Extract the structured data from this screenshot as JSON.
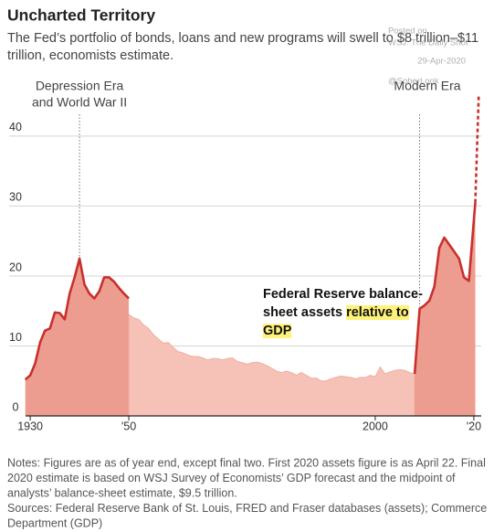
{
  "chart_data": {
    "type": "area",
    "title": "Uncharted Territory",
    "subtitle": [
      "The Fed’s portfolio of bonds, loans and new programs will swell to $8 trillion–$11",
      "trillion, economists estimate."
    ],
    "watermark": [
      "Posted on",
      "WSJ: The Daily Shot",
      "29-Apr-2020",
      "@SoberLook"
    ],
    "annotations": [
      {
        "lines": [
          "Depression Era",
          "and World War II"
        ],
        "x": 1940
      },
      {
        "lines": [
          "Modern Era"
        ],
        "x": 2009
      }
    ],
    "series_label": [
      [
        {
          "text": "Federal Reserve balance-"
        }
      ],
      [
        {
          "text": "sheet assets "
        },
        {
          "text": "relative to",
          "highlight": true
        }
      ],
      [
        {
          "text": "GDP",
          "highlight": true
        }
      ]
    ],
    "xlim": [
      1928.5,
      2021.5
    ],
    "ylim": [
      0,
      46
    ],
    "xticks": [
      1930,
      {
        "value": 1950,
        "label": "'50"
      },
      2000,
      {
        "value": 2020,
        "label": "'20"
      }
    ],
    "yticks": [
      0,
      10,
      20,
      30,
      40
    ],
    "grid": true,
    "series": [
      {
        "color": "#c8302c",
        "fill": "#ec9d8f",
        "x": [
          1929,
          1930,
          1931,
          1932,
          1933,
          1934,
          1935,
          1936,
          1937,
          1938,
          1939,
          1940,
          1941,
          1942,
          1943,
          1944,
          1945,
          1946,
          1947,
          1948,
          1949,
          1950
        ],
        "values": [
          5.2,
          5.8,
          7.5,
          10.5,
          12.2,
          12.5,
          14.8,
          14.7,
          13.8,
          17.5,
          19.8,
          22.5,
          18.8,
          17.5,
          16.8,
          17.8,
          19.8,
          19.8,
          19.2,
          18.3,
          17.5,
          16.8
        ]
      },
      {
        "color": null,
        "fill": "#f6c2b7",
        "x": [
          1950,
          1951,
          1952,
          1953,
          1954,
          1955,
          1956,
          1957,
          1958,
          1959,
          1960,
          1961,
          1962,
          1963,
          1964,
          1965,
          1966,
          1967,
          1968,
          1969,
          1970,
          1971,
          1972,
          1973,
          1974,
          1975,
          1976,
          1977,
          1978,
          1979,
          1980,
          1981,
          1982,
          1983,
          1984,
          1985,
          1986,
          1987,
          1988,
          1989,
          1990,
          1991,
          1992,
          1993,
          1994,
          1995,
          1996,
          1997,
          1998,
          1999,
          2000,
          2001,
          2002,
          2003,
          2004,
          2005,
          2006,
          2007,
          2008
        ],
        "values": [
          14.5,
          14,
          13.8,
          13,
          12.5,
          11.6,
          11,
          10.4,
          10.5,
          9.8,
          9.2,
          9,
          8.7,
          8.5,
          8.5,
          8.3,
          8,
          8.2,
          8.2,
          8,
          8.2,
          8.3,
          7.8,
          7.6,
          7.4,
          7.6,
          7.7,
          7.5,
          7.2,
          6.8,
          6.4,
          6.2,
          6.4,
          6.2,
          5.8,
          6.2,
          5.8,
          5.4,
          5.4,
          5,
          5,
          5.3,
          5.5,
          5.7,
          5.6,
          5.5,
          5.3,
          5.5,
          5.5,
          5.8,
          5.6,
          7,
          6,
          6.3,
          6.5,
          6.6,
          6.5,
          6.2,
          6
        ]
      },
      {
        "color": "#c8302c",
        "fill": "#ec9d8f",
        "x": [
          2008,
          2009,
          2010,
          2011,
          2012,
          2013,
          2014,
          2015,
          2016,
          2017,
          2018,
          2019,
          2020.3
        ],
        "values": [
          6,
          15.3,
          15.8,
          16.5,
          18.5,
          24,
          25.5,
          24.5,
          23.5,
          22.5,
          19.8,
          19.3,
          30.5
        ]
      },
      {
        "color": "#c8302c",
        "fill": null,
        "dash": true,
        "x": [
          2020.3,
          2021
        ],
        "values": [
          30.5,
          46
        ]
      }
    ],
    "notes": [
      "Notes: Figures are as of year end, except final two. First 2020 assets figure is as April 22. Final",
      "2020 estimate is based on WSJ Survey of Economists’ GDP forecast and the midpoint of",
      "analysts’ balance-sheet estimate, $9.5 trillion.",
      "Sources: Federal Reserve Bank of St. Louis, FRED and Fraser databases (assets); Commerce",
      "Department (GDP)"
    ]
  }
}
